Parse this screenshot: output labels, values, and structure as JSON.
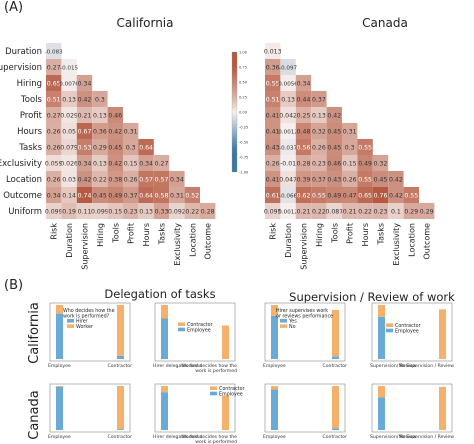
{
  "panel_a_label": "(A)",
  "panel_b_label": "(B)",
  "section_b": {
    "delegation_title": "Delegation of tasks",
    "supervision_title": "Supervision / Review of work",
    "row_labels": [
      "California",
      "Canada"
    ]
  },
  "colors": {
    "positive": "#b5583f",
    "negative": "#3a78a0",
    "hirer": "#6aaad6",
    "worker": "#f5b16b",
    "employee": "#6aaad6",
    "contractor": "#f5b16b"
  },
  "chart_data": [
    {
      "type": "heatmap",
      "title": "California",
      "variables": [
        "Risk",
        "Duration",
        "Supervision",
        "Hiring",
        "Tools",
        "Profit",
        "Hours",
        "Tasks",
        "Exclusivity",
        "Location",
        "Outcome",
        "Uniform"
      ],
      "rows": [
        {
          "label": "Duration",
          "values": [
            -0.083
          ]
        },
        {
          "label": "Supervision",
          "values": [
            0.27,
            -0.015
          ]
        },
        {
          "label": "Hiring",
          "values": [
            0.65,
            0.0076,
            0.34
          ]
        },
        {
          "label": "Tools",
          "values": [
            0.51,
            0.13,
            0.42,
            0.3
          ]
        },
        {
          "label": "Profit",
          "values": [
            0.27,
            0.029,
            0.21,
            0.13,
            0.46
          ]
        },
        {
          "label": "Hours",
          "values": [
            0.26,
            0.05,
            0.67,
            0.36,
            0.42,
            0.31
          ]
        },
        {
          "label": "Tasks",
          "values": [
            0.26,
            0.079,
            0.53,
            0.29,
            0.45,
            0.3,
            0.64
          ]
        },
        {
          "label": "Exclusivity",
          "values": [
            0.059,
            0.026,
            0.34,
            0.13,
            0.42,
            0.15,
            0.34,
            0.27
          ]
        },
        {
          "label": "Location",
          "values": [
            0.26,
            0.03,
            0.42,
            0.22,
            0.38,
            0.26,
            0.57,
            0.57,
            0.34
          ]
        },
        {
          "label": "Outcome",
          "values": [
            0.34,
            0.14,
            0.74,
            0.45,
            0.49,
            0.37,
            0.64,
            0.58,
            0.31,
            0.52
          ]
        },
        {
          "label": "Uniform",
          "values": [
            0.099,
            0.19,
            0.11,
            0.099,
            0.15,
            0.23,
            0.13,
            0.33,
            0.092,
            0.22,
            0.28
          ]
        }
      ],
      "colorbar": {
        "ticks": [
          "1.00",
          "0.75",
          "0.50",
          "0.25",
          "0.00",
          "-0.25",
          "-0.50",
          "-0.75",
          "-1.00"
        ]
      }
    },
    {
      "type": "heatmap",
      "title": "Canada",
      "variables": [
        "Risk",
        "Duration",
        "Supervision",
        "Hiring",
        "Tools",
        "Profit",
        "Hours",
        "Tasks",
        "Exclusivity",
        "Location",
        "Outcome",
        "Uniform"
      ],
      "rows": [
        {
          "label": "Duration",
          "values": [
            0.013
          ]
        },
        {
          "label": "Supervision",
          "values": [
            0.36,
            -0.097
          ]
        },
        {
          "label": "Hiring",
          "values": [
            0.55,
            0.0056,
            0.34
          ]
        },
        {
          "label": "Tools",
          "values": [
            0.51,
            0.13,
            0.44,
            0.37
          ]
        },
        {
          "label": "Profit",
          "values": [
            0.41,
            0.042,
            0.25,
            0.13,
            0.42
          ]
        },
        {
          "label": "Hours",
          "values": [
            0.41,
            0.0012,
            0.48,
            0.32,
            0.45,
            0.31
          ]
        },
        {
          "label": "Tasks",
          "values": [
            0.43,
            -0.037,
            0.56,
            0.26,
            0.45,
            0.3,
            0.55
          ]
        },
        {
          "label": "Exclusivity",
          "values": [
            0.26,
            -0.01,
            0.28,
            0.23,
            0.46,
            0.15,
            0.49,
            0.32
          ]
        },
        {
          "label": "Location",
          "values": [
            0.41,
            0.047,
            0.39,
            0.37,
            0.43,
            0.26,
            0.55,
            0.45,
            0.42
          ]
        },
        {
          "label": "Outcome",
          "values": [
            0.61,
            -0.066,
            0.62,
            0.55,
            0.49,
            0.47,
            0.65,
            0.76,
            0.42,
            0.55
          ]
        },
        {
          "label": "Uniform",
          "values": [
            0.095,
            0.0012,
            0.21,
            0.22,
            0.087,
            0.21,
            0.22,
            0.23,
            0.1,
            0.29,
            0.29
          ]
        }
      ]
    },
    {
      "type": "bar",
      "panel": "California - Delegation of tasks",
      "legend_title": "Who decides how the work is performed?",
      "legend": [
        "Hirer",
        "Worker"
      ],
      "categories": [
        "Employee",
        "Contractor"
      ],
      "series": [
        {
          "name": "Hirer",
          "values": [
            0.84,
            0.06
          ]
        },
        {
          "name": "Worker",
          "values": [
            0.16,
            0.94
          ]
        }
      ]
    },
    {
      "type": "bar",
      "panel": "California - Delegation by hirer",
      "legend": [
        "Contractor",
        "Employee"
      ],
      "categories": [
        "Hirer delegates tasks",
        "Worker decides how work is performed"
      ],
      "series": [
        {
          "name": "Employee",
          "values": [
            0.75,
            0.0
          ]
        },
        {
          "name": "Contractor",
          "values": [
            0.25,
            0.62
          ]
        }
      ]
    },
    {
      "type": "bar",
      "panel": "California - Supervision",
      "legend_title": "Hirer supervises work or reviews performance",
      "legend": [
        "Yes",
        "No"
      ],
      "categories": [
        "Employee",
        "Contractor"
      ],
      "series": [
        {
          "name": "Yes",
          "values": [
            0.8,
            0.05
          ]
        },
        {
          "name": "No",
          "values": [
            0.2,
            0.86
          ]
        }
      ]
    },
    {
      "type": "bar",
      "panel": "California - Supervision by status",
      "legend": [
        "Contractor",
        "Employee"
      ],
      "categories": [
        "Supervision/ Review",
        "No Supervision / Review"
      ],
      "series": [
        {
          "name": "Employee",
          "values": [
            0.78,
            0.0
          ]
        },
        {
          "name": "Contractor",
          "values": [
            0.22,
            0.92
          ]
        }
      ]
    },
    {
      "type": "bar",
      "panel": "Canada - Delegation of tasks",
      "categories": [
        "Employee",
        "Contractor"
      ],
      "series": [
        {
          "name": "Hirer",
          "values": [
            0.98,
            0.02
          ]
        },
        {
          "name": "Worker",
          "values": [
            0.02,
            0.98
          ]
        }
      ]
    },
    {
      "type": "bar",
      "panel": "Canada - Delegation by hirer",
      "legend": [
        "Contractor",
        "Employee"
      ],
      "categories": [
        "Hirer delegates tasks",
        "Worker decides how work is performed"
      ],
      "series": [
        {
          "name": "Employee",
          "values": [
            0.86,
            0.0
          ]
        },
        {
          "name": "Contractor",
          "values": [
            0.14,
            0.78
          ]
        }
      ]
    },
    {
      "type": "bar",
      "panel": "Canada - Supervision",
      "categories": [
        "Employee",
        "Contractor"
      ],
      "series": [
        {
          "name": "Yes",
          "values": [
            0.92,
            0.04
          ]
        },
        {
          "name": "No",
          "values": [
            0.08,
            0.96
          ]
        }
      ]
    },
    {
      "type": "bar",
      "panel": "Canada - Supervision by status",
      "categories": [
        "Supervision/ Review",
        "No Supervision / Review"
      ],
      "series": [
        {
          "name": "Employee",
          "values": [
            0.74,
            0.0
          ]
        },
        {
          "name": "Contractor",
          "values": [
            0.26,
            0.98
          ]
        }
      ]
    }
  ]
}
